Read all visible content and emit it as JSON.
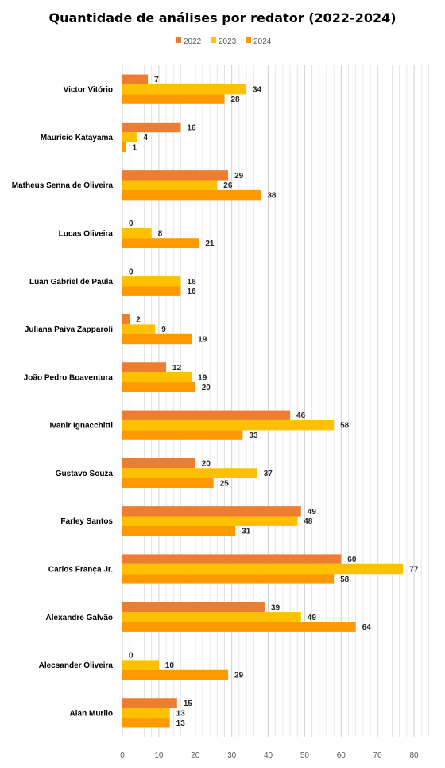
{
  "chart_data": {
    "type": "bar",
    "orientation": "horizontal",
    "title": "Quantidade de análises por redator (2022-2024)",
    "xlabel": "",
    "ylabel": "",
    "xlim": [
      0,
      85
    ],
    "x_ticks": [
      0,
      10,
      20,
      30,
      40,
      50,
      60,
      70,
      80
    ],
    "grid": true,
    "legend_position": "top",
    "categories": [
      "Victor Vitório",
      "Maurício Katayama",
      "Matheus Senna de Oliveira",
      "Lucas Oliveira",
      "Luan Gabriel de Paula",
      "Juliana Paiva Zapparoli",
      "João Pedro Boaventura",
      "Ivanir Ignacchitti",
      "Gustavo Souza",
      "Farley Santos",
      "Carlos França Jr.",
      "Alexandre Galvão",
      "Alecsander Oliveira",
      "Alan Murilo"
    ],
    "series": [
      {
        "name": "2022",
        "color": "#ED7D31",
        "values": [
          7,
          16,
          29,
          0,
          0,
          2,
          12,
          46,
          20,
          49,
          60,
          39,
          0,
          15
        ]
      },
      {
        "name": "2023",
        "color": "#FFC000",
        "values": [
          34,
          4,
          26,
          8,
          16,
          9,
          19,
          58,
          37,
          48,
          77,
          49,
          10,
          13
        ]
      },
      {
        "name": "2024",
        "color": "#FF9900",
        "values": [
          28,
          1,
          38,
          21,
          16,
          19,
          20,
          33,
          25,
          31,
          58,
          64,
          29,
          13
        ]
      }
    ]
  }
}
